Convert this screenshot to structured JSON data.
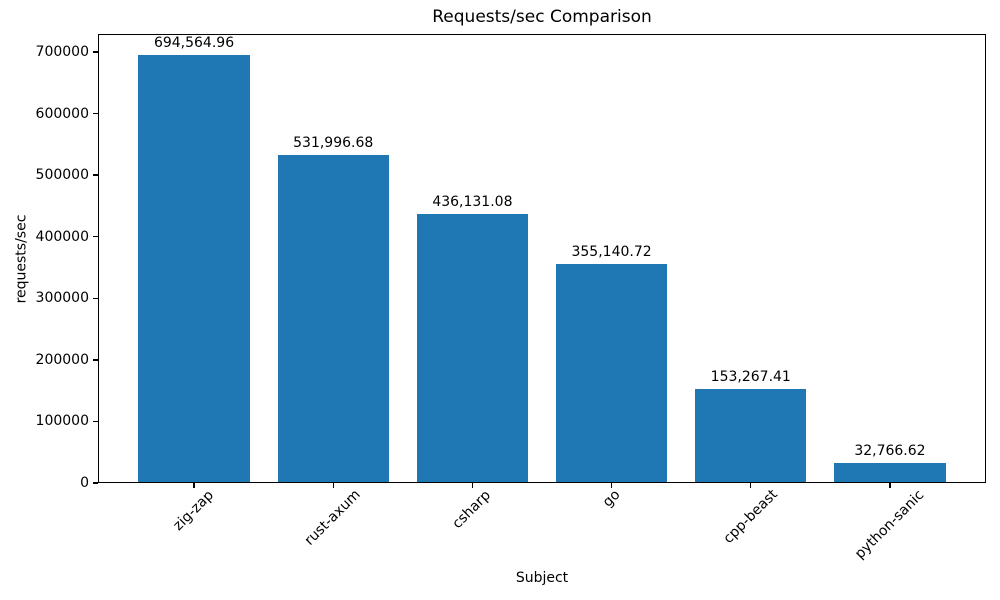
{
  "chart_data": {
    "type": "bar",
    "title": "Requests/sec Comparison",
    "xlabel": "Subject",
    "ylabel": "requests/sec",
    "categories": [
      "zig-zap",
      "rust-axum",
      "csharp",
      "go",
      "cpp-beast",
      "python-sanic"
    ],
    "values": [
      694564.96,
      531996.68,
      436131.08,
      355140.72,
      153267.41,
      32766.62
    ],
    "value_labels": [
      "694,564.96",
      "531,996.68",
      "436,131.08",
      "355,140.72",
      "153,267.41",
      "32,766.62"
    ],
    "bar_color": "#1f77b4",
    "text_color": "#000000",
    "background_color": "#ffffff",
    "ylim": [
      0,
      729293
    ],
    "yticks": [
      0,
      100000,
      200000,
      300000,
      400000,
      500000,
      600000,
      700000
    ],
    "ytick_labels": [
      "0",
      "100000",
      "200000",
      "300000",
      "400000",
      "500000",
      "600000",
      "700000"
    ],
    "xtick_rotation_deg": 45,
    "grid": false,
    "legend": "none",
    "bar_width_fraction": 0.8
  }
}
